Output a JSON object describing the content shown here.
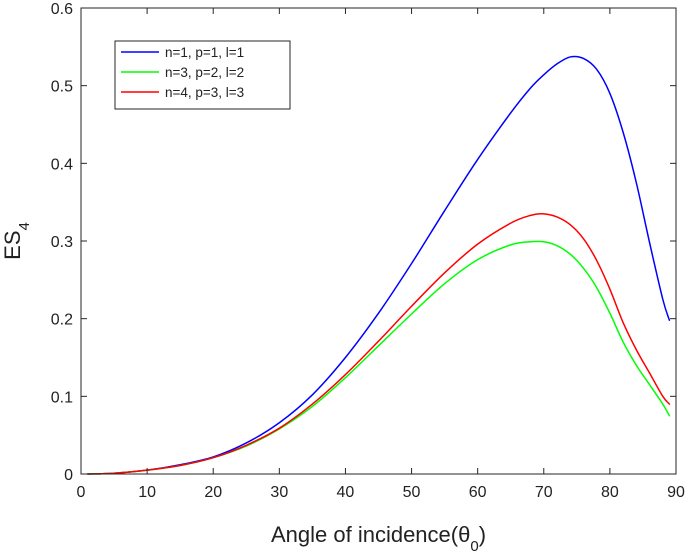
{
  "chart_data": {
    "type": "line",
    "title": "",
    "xlabel": "Angle of incidence(θ",
    "xlabel_sub": "0",
    "xlabel_close": ")",
    "ylabel": "ES",
    "ylabel_sub": "4",
    "xlim": [
      0,
      90
    ],
    "ylim": [
      0,
      0.6
    ],
    "x_ticks": [
      "0",
      "10",
      "20",
      "30",
      "40",
      "50",
      "60",
      "70",
      "80",
      "90"
    ],
    "y_ticks": [
      "0",
      "0.1",
      "0.2",
      "0.3",
      "0.4",
      "0.5",
      "0.6"
    ],
    "x_tick_values": [
      0,
      10,
      20,
      30,
      40,
      50,
      60,
      70,
      80,
      90
    ],
    "y_tick_values": [
      0,
      0.1,
      0.2,
      0.3,
      0.4,
      0.5,
      0.6
    ],
    "grid": false,
    "legend_position": "top-left",
    "x": [
      1,
      5,
      10,
      15,
      20,
      25,
      30,
      35,
      40,
      45,
      50,
      55,
      60,
      65,
      68,
      70,
      72,
      74,
      76,
      78,
      80,
      82,
      84,
      86,
      88,
      89
    ],
    "series": [
      {
        "name": "n=1, p=1, l=1",
        "color": "#0000ff",
        "values": [
          0.0,
          0.001,
          0.005,
          0.012,
          0.022,
          0.04,
          0.066,
          0.102,
          0.15,
          0.207,
          0.271,
          0.339,
          0.405,
          0.465,
          0.497,
          0.514,
          0.528,
          0.537,
          0.535,
          0.521,
          0.49,
          0.44,
          0.375,
          0.298,
          0.225,
          0.198
        ]
      },
      {
        "name": "n=3, p=2, l=2",
        "color": "#00ff00",
        "values": [
          0.0,
          0.001,
          0.005,
          0.011,
          0.021,
          0.036,
          0.058,
          0.087,
          0.124,
          0.165,
          0.206,
          0.245,
          0.276,
          0.295,
          0.299,
          0.299,
          0.294,
          0.283,
          0.265,
          0.24,
          0.207,
          0.17,
          0.14,
          0.115,
          0.09,
          0.075
        ]
      },
      {
        "name": "n=4, p=3, l=3",
        "color": "#ff0000",
        "values": [
          0.0,
          0.001,
          0.005,
          0.011,
          0.021,
          0.037,
          0.059,
          0.09,
          0.128,
          0.171,
          0.216,
          0.259,
          0.296,
          0.323,
          0.333,
          0.335,
          0.331,
          0.321,
          0.303,
          0.275,
          0.238,
          0.195,
          0.16,
          0.13,
          0.1,
          0.09
        ]
      }
    ]
  }
}
